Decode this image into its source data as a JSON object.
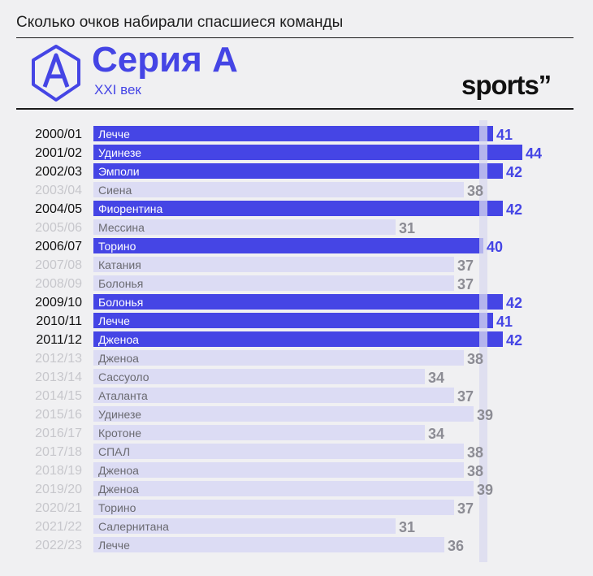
{
  "header": {
    "title": "Сколько очков набирали спасшиеся команды",
    "series_name": "Серия А",
    "subtitle": "XXI век",
    "brand": "sports",
    "brand_mark": "’’"
  },
  "colors": {
    "accent": "#4545e5",
    "muted_bar": "#dcdcf4",
    "muted_text": "#c7c7cc",
    "muted_value": "#8c8c94",
    "reference_line": "#d9d9ef",
    "background": "#f0f0f2"
  },
  "chart_data": {
    "type": "bar",
    "orientation": "horizontal",
    "xlim": [
      0,
      44
    ],
    "reference_line_value": 40,
    "categories": [
      "2000/01",
      "2001/02",
      "2002/03",
      "2003/04",
      "2004/05",
      "2005/06",
      "2006/07",
      "2007/08",
      "2008/09",
      "2009/10",
      "2010/11",
      "2011/12",
      "2012/13",
      "2013/14",
      "2014/15",
      "2015/16",
      "2016/17",
      "2017/18",
      "2018/19",
      "2019/20",
      "2020/21",
      "2021/22",
      "2022/23"
    ],
    "teams": [
      "Лечче",
      "Удинезе",
      "Эмполи",
      "Сиена",
      "Фиорентина",
      "Мессина",
      "Торино",
      "Катания",
      "Болонья",
      "Болонья",
      "Лечче",
      "Дженоа",
      "Дженоа",
      "Сассуоло",
      "Аталанта",
      "Удинезе",
      "Кротоне",
      "СПАЛ",
      "Дженоа",
      "Дженоа",
      "Торино",
      "Салернитана",
      "Лечче"
    ],
    "values": [
      41,
      44,
      42,
      38,
      42,
      31,
      40,
      37,
      37,
      42,
      41,
      42,
      38,
      34,
      37,
      39,
      34,
      38,
      38,
      39,
      37,
      31,
      36
    ],
    "highlighted": [
      true,
      true,
      true,
      false,
      true,
      false,
      true,
      false,
      false,
      true,
      true,
      true,
      false,
      false,
      false,
      false,
      false,
      false,
      false,
      false,
      false,
      false,
      false
    ]
  }
}
